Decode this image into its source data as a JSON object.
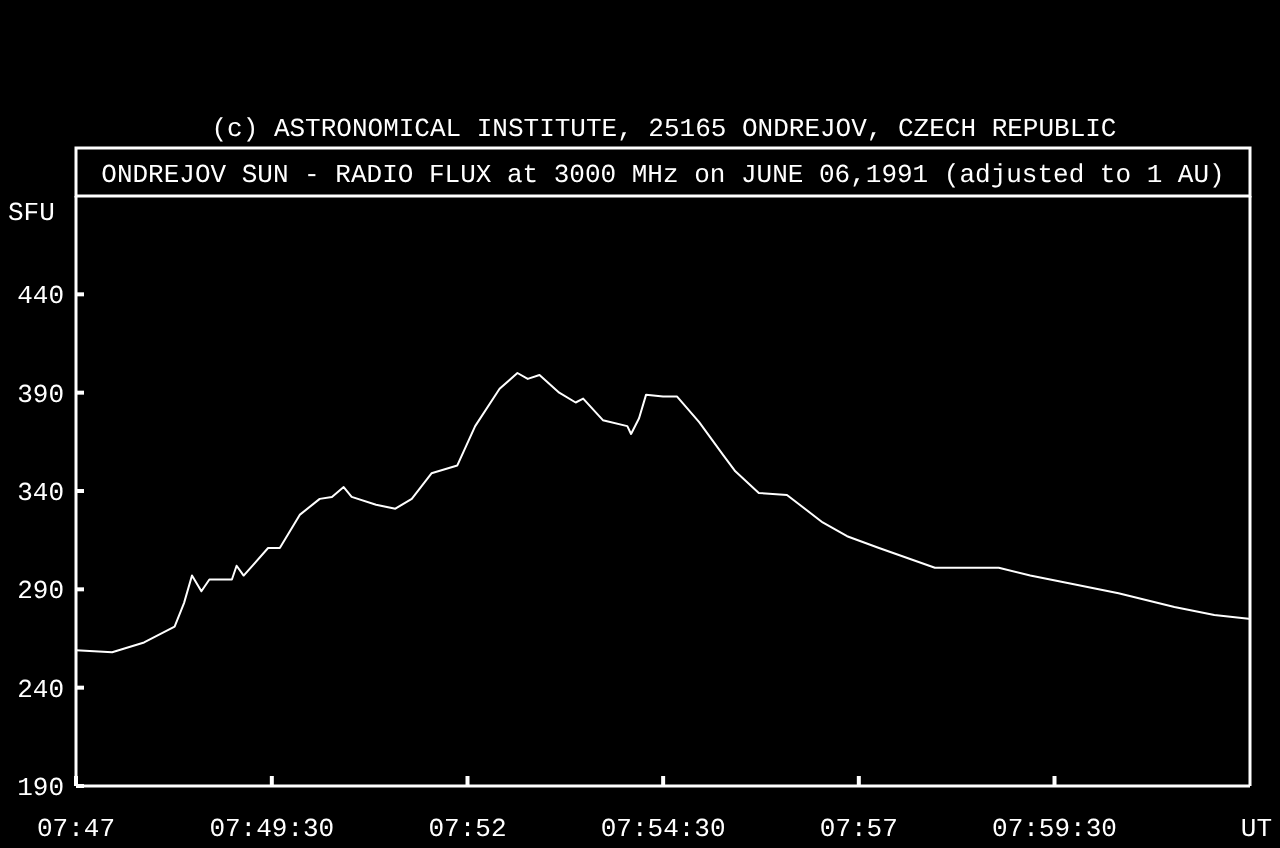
{
  "chart_data": {
    "type": "line",
    "title": "ONDREJOV SUN - RADIO FLUX at 3000 MHz on JUNE 06,1991 (adjusted to 1 AU)",
    "annotations": [
      "(c) ASTRONOMICAL INSTITUTE, 25165 ONDREJOV, CZECH REPUBLIC"
    ],
    "xlabel": "UT",
    "ylabel": "SFU",
    "x": [
      7.7833,
      7.791,
      7.7978,
      7.8043,
      7.8063,
      7.808,
      7.81,
      7.8117,
      7.8165,
      7.8175,
      7.819,
      7.8242,
      7.8267,
      7.831,
      7.8352,
      7.8378,
      7.8403,
      7.842,
      7.8472,
      7.8513,
      7.8548,
      7.859,
      7.8645,
      7.8683,
      7.8735,
      7.8773,
      7.8795,
      7.882,
      7.8862,
      7.8897,
      7.8913,
      7.8955,
      7.9007,
      7.9015,
      7.9032,
      7.9047,
      7.9083,
      7.9113,
      7.916,
      7.9212,
      7.9237,
      7.9287,
      7.9347,
      7.9423,
      7.9475,
      7.9543,
      7.9662,
      7.9798,
      7.9865,
      7.995,
      8.0053,
      8.0172,
      8.0257,
      8.033
    ],
    "series": [
      {
        "color": "#ffffff",
        "values": [
          259,
          258,
          263,
          271,
          283,
          297,
          289,
          295,
          295,
          302,
          297,
          311,
          311,
          328,
          336,
          337,
          342,
          337,
          333,
          331,
          336,
          349,
          353,
          373,
          392,
          400,
          397,
          399,
          390,
          385,
          387,
          376,
          373,
          369,
          377,
          389,
          388,
          388,
          375,
          358,
          350,
          339,
          338,
          324,
          317,
          311,
          301,
          301,
          297,
          293,
          288,
          281,
          277,
          275
        ]
      }
    ],
    "xlim": [
      7.7833,
      8.0333
    ],
    "xticks": [
      {
        "value": 7.7833,
        "label": "07:47"
      },
      {
        "value": 7.825,
        "label": "07:49:30"
      },
      {
        "value": 7.86667,
        "label": "07:52"
      },
      {
        "value": 7.90833,
        "label": "07:54:30"
      },
      {
        "value": 7.95,
        "label": "07:57"
      },
      {
        "value": 7.99167,
        "label": "07:59:30"
      }
    ],
    "ylim": [
      190,
      490
    ],
    "yticks": [
      190,
      240,
      290,
      340,
      390,
      440
    ],
    "grid": false,
    "marker": "none",
    "line_style": "solid"
  }
}
